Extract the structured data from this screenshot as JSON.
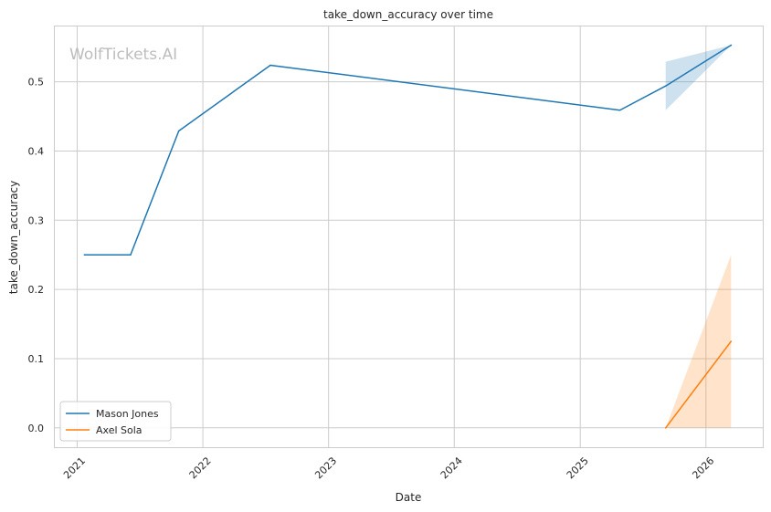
{
  "chart_data": {
    "type": "line",
    "title": "take_down_accuracy over time",
    "xlabel": "Date",
    "ylabel": "take_down_accuracy",
    "watermark": "WolfTickets.AI",
    "xlim": [
      "2020-10-28",
      "2026-06-15"
    ],
    "ylim": [
      -0.028,
      0.58
    ],
    "x_ticks": [
      "2021-01-01",
      "2022-01-01",
      "2023-01-01",
      "2024-01-01",
      "2025-01-01",
      "2026-01-01"
    ],
    "x_tick_labels": [
      "2021",
      "2022",
      "2023",
      "2024",
      "2025",
      "2026"
    ],
    "y_ticks": [
      0.0,
      0.1,
      0.2,
      0.3,
      0.4,
      0.5
    ],
    "y_tick_labels": [
      "0.0",
      "0.1",
      "0.2",
      "0.3",
      "0.4",
      "0.5"
    ],
    "grid": true,
    "legend_position": "lower-left",
    "series": [
      {
        "name": "Mason Jones",
        "color": "#1f77b4",
        "points": [
          {
            "x": "2021-01-22",
            "y": 0.25
          },
          {
            "x": "2021-06-05",
            "y": 0.25
          },
          {
            "x": "2021-10-23",
            "y": 0.429
          },
          {
            "x": "2022-07-16",
            "y": 0.524
          },
          {
            "x": "2025-04-26",
            "y": 0.459
          },
          {
            "x": "2025-09-06",
            "y": 0.494
          },
          {
            "x": "2026-03-15",
            "y": 0.553
          }
        ],
        "band": [
          {
            "x": "2025-09-06",
            "low": 0.459,
            "high": 0.529
          },
          {
            "x": "2026-03-15",
            "low": 0.553,
            "high": 0.553
          }
        ]
      },
      {
        "name": "Axel Sola",
        "color": "#ff7f0e",
        "points": [
          {
            "x": "2025-09-06",
            "y": 0.0
          },
          {
            "x": "2026-03-15",
            "y": 0.125
          }
        ],
        "band": [
          {
            "x": "2025-09-06",
            "low": 0.0,
            "high": 0.0
          },
          {
            "x": "2026-03-15",
            "low": 0.0,
            "high": 0.25
          }
        ]
      }
    ]
  }
}
